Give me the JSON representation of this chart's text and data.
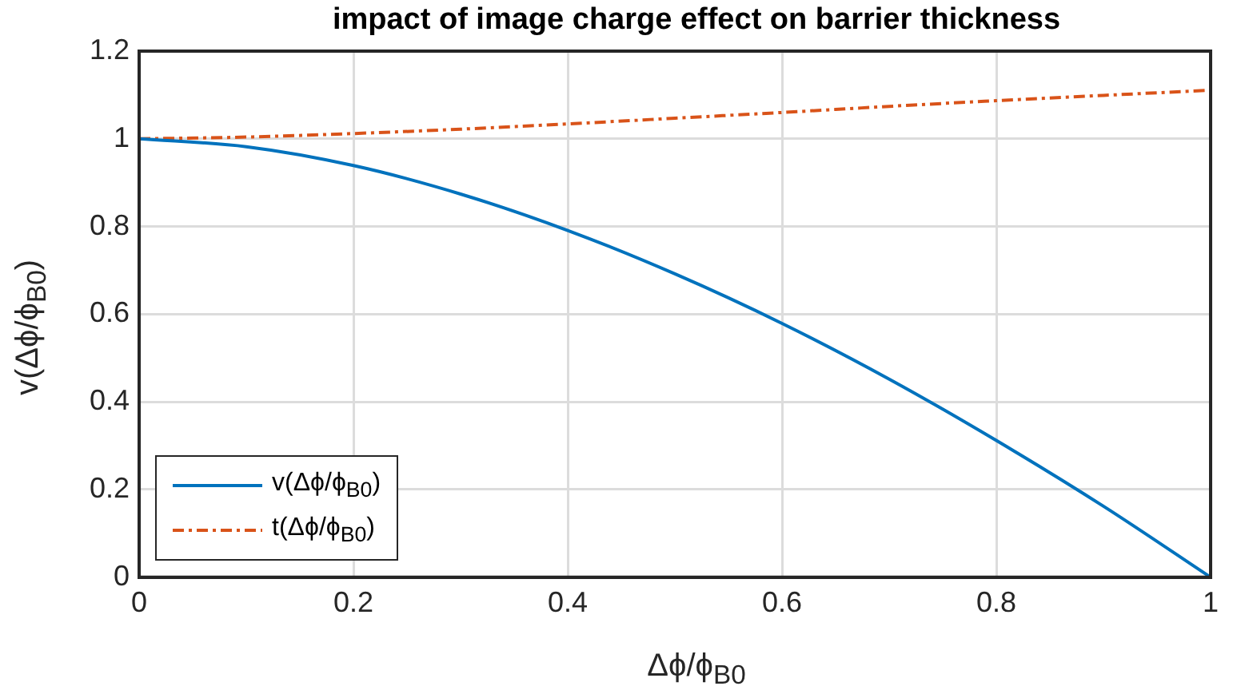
{
  "chart_data": {
    "type": "line",
    "title": "impact of image charge effect on barrier thickness",
    "xlabel": "Δϕ/ϕ$_{B0}$",
    "ylabel": "v(Δϕ/ϕ$_{B0}$)",
    "x": [
      0,
      0.1,
      0.2,
      0.3,
      0.4,
      0.5,
      0.6,
      0.7,
      0.8,
      0.9,
      1
    ],
    "series": [
      {
        "name": "v(Δϕ/ϕ$_{B0}$)",
        "color": "#0072bd",
        "line_style": "solid",
        "values": [
          1,
          0.982,
          0.939,
          0.874,
          0.791,
          0.692,
          0.579,
          0.452,
          0.312,
          0.162,
          0
        ]
      },
      {
        "name": "t(Δϕ/ϕ$_{B0}$)",
        "color": "#d95319",
        "line_style": "dashed",
        "values": [
          1,
          1.004,
          1.012,
          1.022,
          1.034,
          1.047,
          1.06,
          1.074,
          1.087,
          1.099,
          1.111
        ]
      }
    ],
    "xlim": [
      0,
      1
    ],
    "xticks": [
      0,
      0.2,
      0.4,
      0.6,
      0.8,
      1
    ],
    "ylim": [
      0,
      1.2
    ],
    "yticks": [
      0,
      0.2,
      0.4,
      0.6,
      0.8,
      1,
      1.2
    ],
    "grid": true,
    "legend": "bottom left",
    "marker": "none"
  }
}
